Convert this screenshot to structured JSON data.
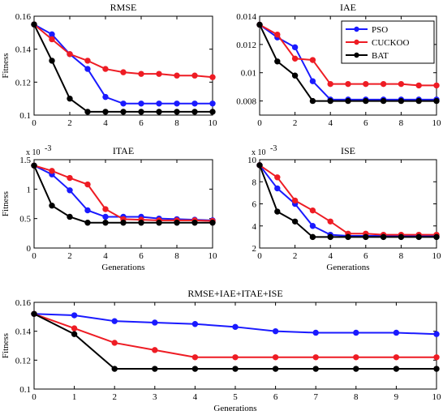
{
  "chart_data": [
    {
      "type": "line",
      "title": "RMSE",
      "xlabel": "",
      "ylabel": "Fitness",
      "exponent_label": "",
      "xlim": [
        0,
        10
      ],
      "ylim": [
        0.1,
        0.16
      ],
      "xticks": [
        0,
        2,
        4,
        6,
        8,
        10
      ],
      "xtick_labels": [
        "0",
        "2",
        "4",
        "6",
        "8",
        "10"
      ],
      "yticks": [
        0.1,
        0.12,
        0.14,
        0.16
      ],
      "ytick_labels": [
        "0.1",
        "0.12",
        "0.14",
        "0.16"
      ],
      "x": [
        0,
        1,
        2,
        3,
        4,
        5,
        6,
        7,
        8,
        9,
        10
      ],
      "series": [
        {
          "name": "PSO",
          "color": "#1a1aff",
          "values": [
            0.155,
            0.149,
            0.137,
            0.128,
            0.111,
            0.107,
            0.107,
            0.107,
            0.107,
            0.107,
            0.107
          ]
        },
        {
          "name": "CUCKOO",
          "color": "#ee1c24",
          "values": [
            0.155,
            0.146,
            0.137,
            0.133,
            0.128,
            0.126,
            0.125,
            0.125,
            0.124,
            0.124,
            0.123
          ]
        },
        {
          "name": "BAT",
          "color": "#000000",
          "values": [
            0.155,
            0.133,
            0.11,
            0.102,
            0.102,
            0.102,
            0.102,
            0.102,
            0.102,
            0.102,
            0.102
          ]
        }
      ],
      "legend": false
    },
    {
      "type": "line",
      "title": "IAE",
      "xlabel": "",
      "ylabel": "",
      "exponent_label": "",
      "xlim": [
        0,
        10
      ],
      "ylim": [
        0.007,
        0.014
      ],
      "xticks": [
        0,
        2,
        4,
        6,
        8,
        10
      ],
      "xtick_labels": [
        "0",
        "2",
        "4",
        "6",
        "8",
        "10"
      ],
      "yticks": [
        0.008,
        0.01,
        0.012,
        0.014
      ],
      "ytick_labels": [
        "0.008",
        "0.01",
        "0.012",
        "0.014"
      ],
      "x": [
        0,
        1,
        2,
        3,
        4,
        5,
        6,
        7,
        8,
        9,
        10
      ],
      "series": [
        {
          "name": "PSO",
          "color": "#1a1aff",
          "values": [
            0.0134,
            0.0125,
            0.0118,
            0.0094,
            0.0081,
            0.0081,
            0.0081,
            0.0081,
            0.0081,
            0.0081,
            0.0081
          ]
        },
        {
          "name": "CUCKOO",
          "color": "#ee1c24",
          "values": [
            0.0134,
            0.0127,
            0.011,
            0.0109,
            0.0092,
            0.0092,
            0.0092,
            0.0092,
            0.0092,
            0.0091,
            0.0091
          ]
        },
        {
          "name": "BAT",
          "color": "#000000",
          "values": [
            0.0134,
            0.0108,
            0.0098,
            0.008,
            0.008,
            0.008,
            0.008,
            0.008,
            0.008,
            0.008,
            0.008
          ]
        }
      ],
      "legend": true,
      "legend_position": "top-right"
    },
    {
      "type": "line",
      "title": "ITAE",
      "xlabel": "Generations",
      "ylabel": "Fitness",
      "exponent_label": "x 10",
      "exponent_power": "-3",
      "xlim": [
        0,
        10
      ],
      "ylim": [
        0,
        1.5
      ],
      "xticks": [
        0,
        2,
        4,
        6,
        8,
        10
      ],
      "xtick_labels": [
        "0",
        "2",
        "4",
        "6",
        "8",
        "10"
      ],
      "yticks": [
        0,
        0.5,
        1,
        1.5
      ],
      "ytick_labels": [
        "0",
        "0.5",
        "1",
        "1.5"
      ],
      "x": [
        0,
        1,
        2,
        3,
        4,
        5,
        6,
        7,
        8,
        9,
        10
      ],
      "series": [
        {
          "name": "PSO",
          "color": "#1a1aff",
          "values": [
            1.4,
            1.25,
            0.98,
            0.64,
            0.53,
            0.53,
            0.53,
            0.5,
            0.49,
            0.48,
            0.47
          ]
        },
        {
          "name": "CUCKOO",
          "color": "#ee1c24",
          "values": [
            1.4,
            1.31,
            1.19,
            1.08,
            0.66,
            0.49,
            0.48,
            0.47,
            0.47,
            0.47,
            0.46
          ]
        },
        {
          "name": "BAT",
          "color": "#000000",
          "values": [
            1.4,
            0.72,
            0.53,
            0.43,
            0.43,
            0.43,
            0.43,
            0.43,
            0.43,
            0.43,
            0.43
          ]
        }
      ],
      "legend": false
    },
    {
      "type": "line",
      "title": "ISE",
      "xlabel": "Generations",
      "ylabel": "",
      "exponent_label": "x 10",
      "exponent_power": "-3",
      "xlim": [
        0,
        10
      ],
      "ylim": [
        2,
        10
      ],
      "xticks": [
        0,
        2,
        4,
        6,
        8,
        10
      ],
      "xtick_labels": [
        "0",
        "2",
        "4",
        "6",
        "8",
        "10"
      ],
      "yticks": [
        2,
        4,
        6,
        8,
        10
      ],
      "ytick_labels": [
        "2",
        "4",
        "6",
        "8",
        "10"
      ],
      "x": [
        0,
        1,
        2,
        3,
        4,
        5,
        6,
        7,
        8,
        9,
        10
      ],
      "series": [
        {
          "name": "PSO",
          "color": "#1a1aff",
          "values": [
            9.5,
            7.4,
            6.0,
            4.0,
            3.2,
            3.1,
            3.1,
            3.1,
            3.1,
            3.1,
            3.1
          ]
        },
        {
          "name": "CUCKOO",
          "color": "#ee1c24",
          "values": [
            9.5,
            8.4,
            6.3,
            5.4,
            4.4,
            3.3,
            3.3,
            3.2,
            3.2,
            3.2,
            3.2
          ]
        },
        {
          "name": "BAT",
          "color": "#000000",
          "values": [
            9.5,
            5.3,
            4.4,
            3.0,
            3.0,
            3.0,
            3.0,
            3.0,
            3.0,
            3.0,
            3.0
          ]
        }
      ],
      "legend": false
    },
    {
      "type": "line",
      "title": "RMSE+IAE+ITAE+ISE",
      "xlabel": "Generations",
      "ylabel": "Fitness",
      "exponent_label": "",
      "xlim": [
        0,
        10
      ],
      "ylim": [
        0.1,
        0.16
      ],
      "xticks": [
        0,
        1,
        2,
        3,
        4,
        5,
        6,
        7,
        8,
        9,
        10
      ],
      "xtick_labels": [
        "0",
        "1",
        "2",
        "3",
        "4",
        "5",
        "6",
        "7",
        "8",
        "9",
        "10"
      ],
      "yticks": [
        0.1,
        0.12,
        0.14,
        0.16
      ],
      "ytick_labels": [
        "0.1",
        "0.12",
        "0.14",
        "0.16"
      ],
      "x": [
        0,
        1,
        2,
        3,
        4,
        5,
        6,
        7,
        8,
        9,
        10
      ],
      "series": [
        {
          "name": "PSO",
          "color": "#1a1aff",
          "values": [
            0.152,
            0.151,
            0.147,
            0.146,
            0.145,
            0.143,
            0.14,
            0.139,
            0.139,
            0.139,
            0.138
          ]
        },
        {
          "name": "CUCKOO",
          "color": "#ee1c24",
          "values": [
            0.152,
            0.142,
            0.132,
            0.127,
            0.122,
            0.122,
            0.122,
            0.122,
            0.122,
            0.122,
            0.122
          ]
        },
        {
          "name": "BAT",
          "color": "#000000",
          "values": [
            0.152,
            0.138,
            0.114,
            0.114,
            0.114,
            0.114,
            0.114,
            0.114,
            0.114,
            0.114,
            0.114
          ]
        }
      ],
      "legend": false
    }
  ]
}
